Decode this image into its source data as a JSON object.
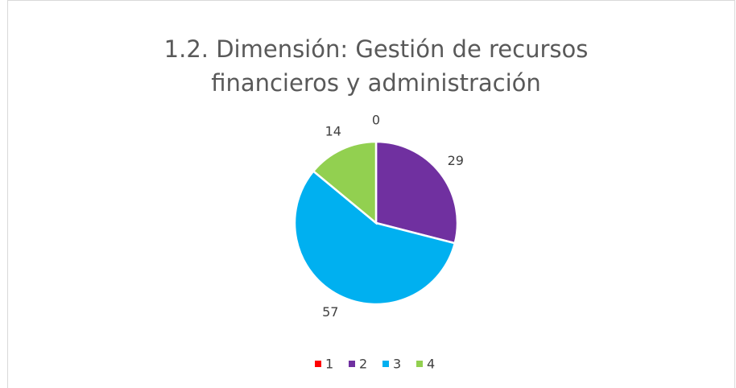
{
  "chart_data": {
    "type": "pie",
    "title": "1.2. Dimensión: Gestión de recursos financieros y administración",
    "categories": [
      "1",
      "2",
      "3",
      "4"
    ],
    "values": [
      0,
      29,
      57,
      14
    ],
    "colors": [
      "#ff0000",
      "#7030a0",
      "#00b0f0",
      "#92d050"
    ],
    "legend": "bottom"
  }
}
